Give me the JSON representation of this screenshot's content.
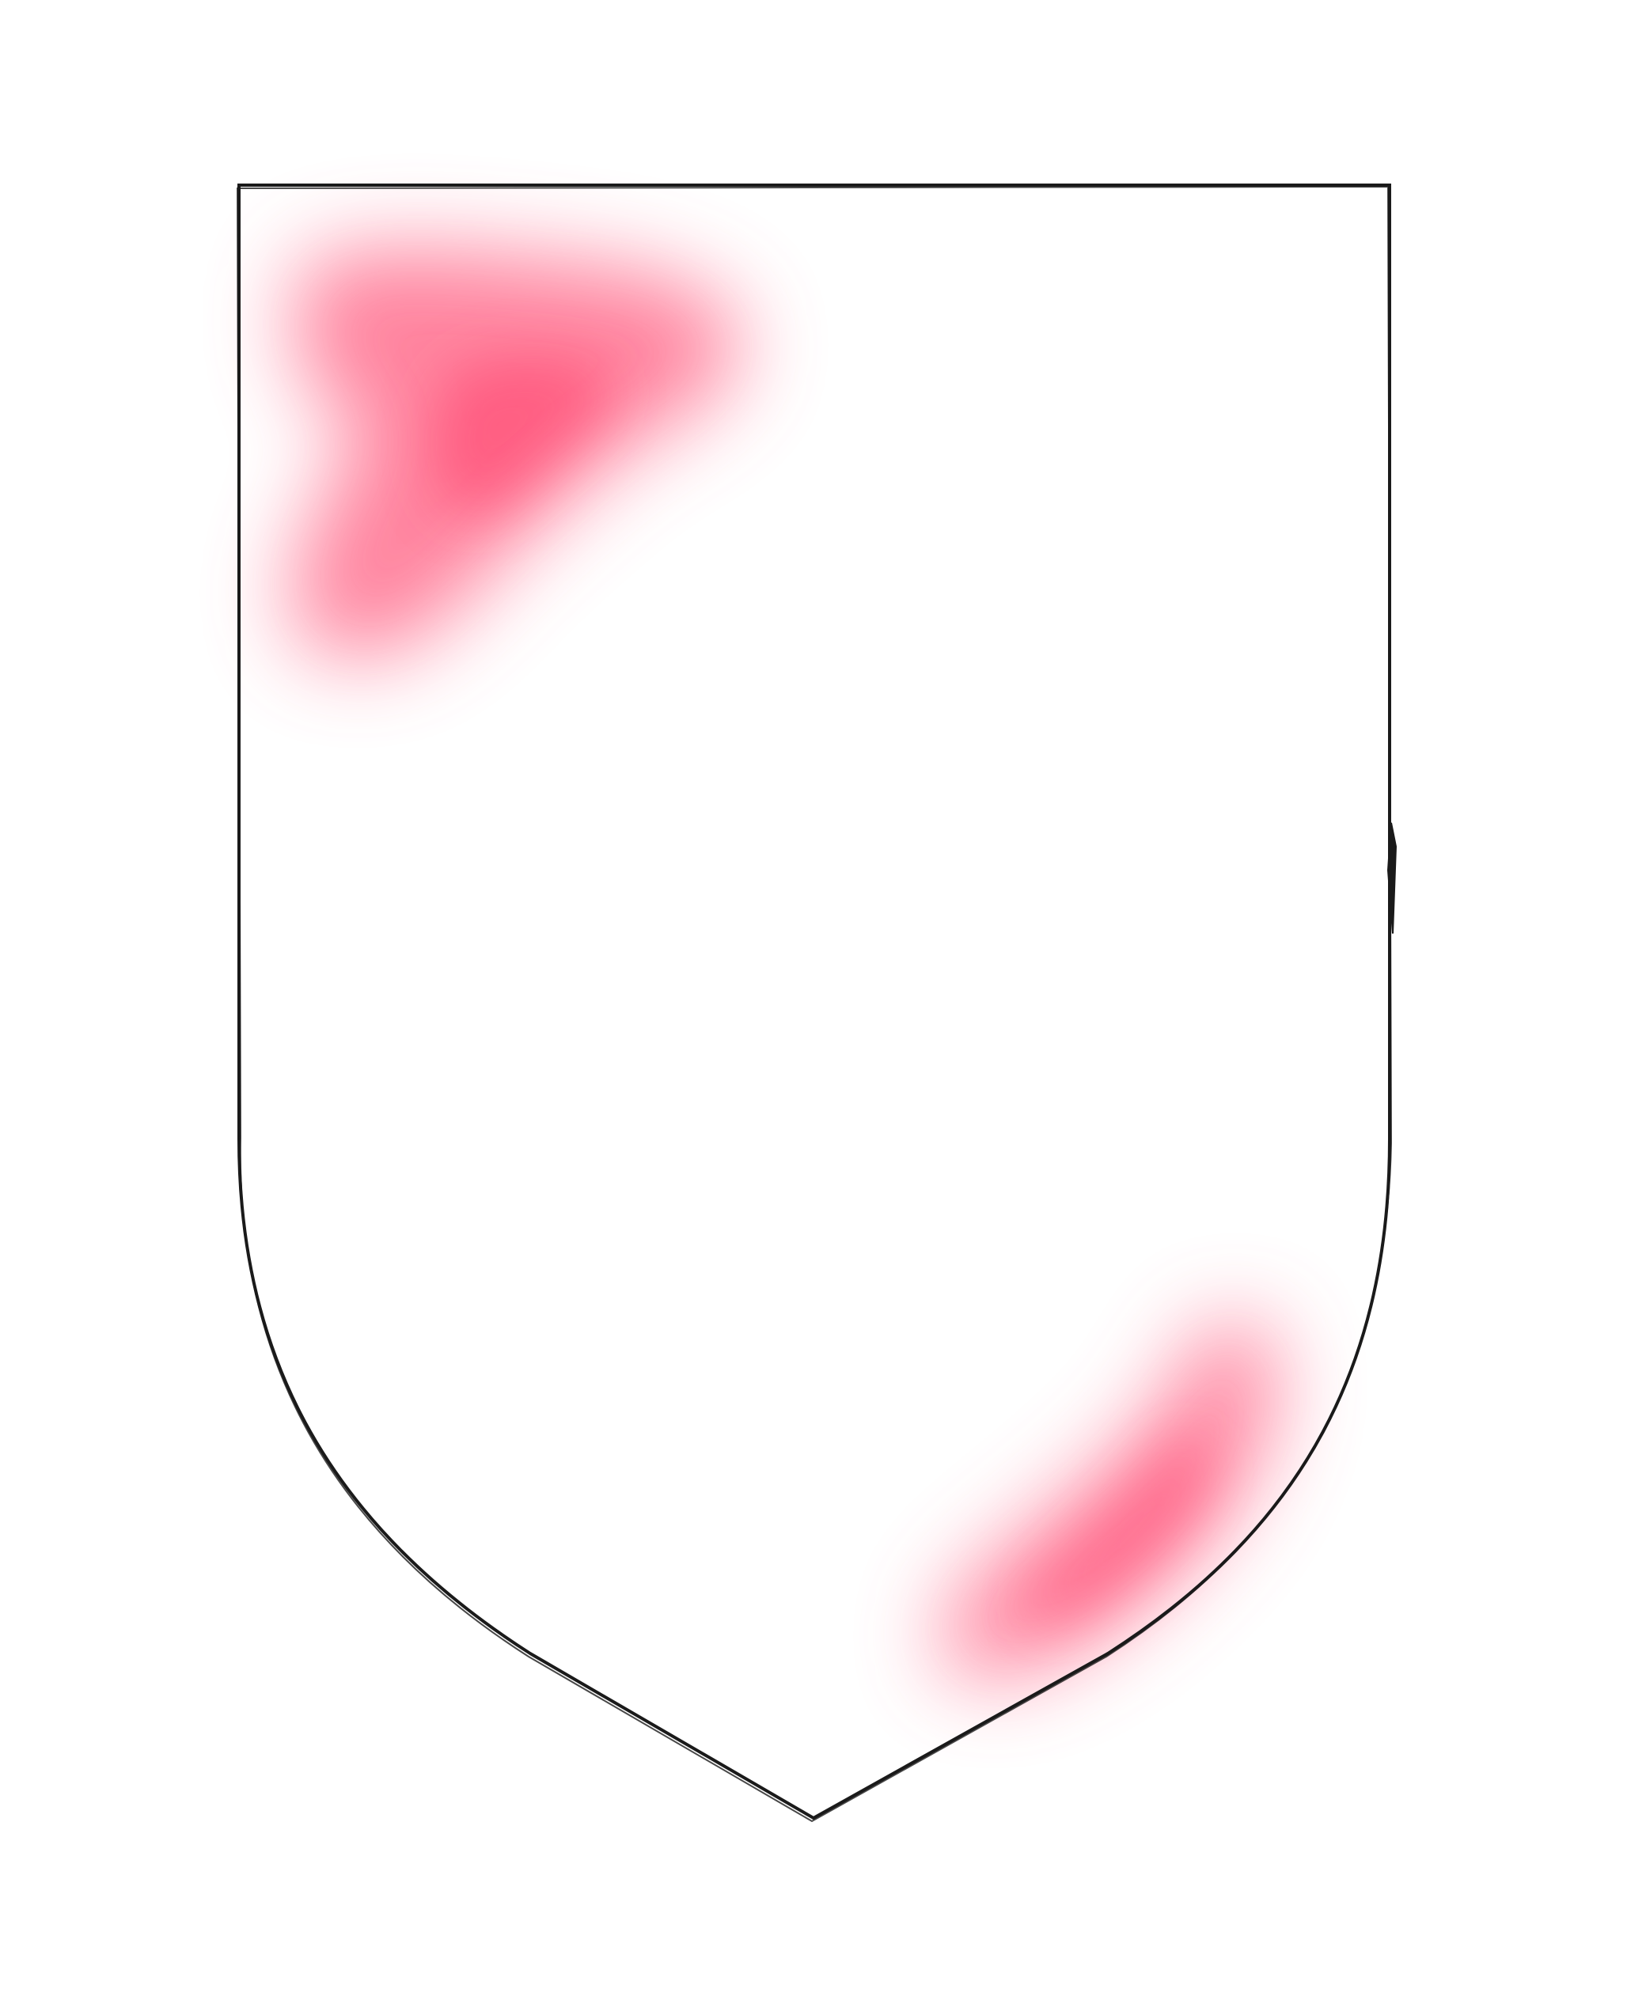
{
  "figure": {
    "background_color": "#ffffff",
    "outline_color": "#1a1a1a",
    "heat_color": "#ff5a7e",
    "heat_core_color": "#ff3f6c",
    "shape": "heater-shield"
  }
}
